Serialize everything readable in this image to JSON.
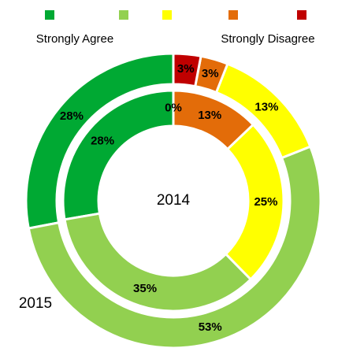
{
  "chart_data": {
    "type": "donut",
    "categories": [
      "Strongly Agree",
      null,
      null,
      null,
      "Strongly Disagree"
    ],
    "colors": [
      "#00a933",
      "#92d050",
      "#ffff00",
      "#e36c09",
      "#c00000"
    ],
    "series": [
      {
        "name": "2015",
        "values": [
          28,
          53,
          13,
          3,
          3
        ],
        "value_labels": [
          "28%",
          "53%",
          "13%",
          "3%",
          "3%"
        ]
      },
      {
        "name": "2014",
        "values": [
          28,
          35,
          25,
          13,
          0
        ],
        "value_labels": [
          "28%",
          "35%",
          "25%",
          "13%",
          "0%"
        ]
      }
    ]
  }
}
